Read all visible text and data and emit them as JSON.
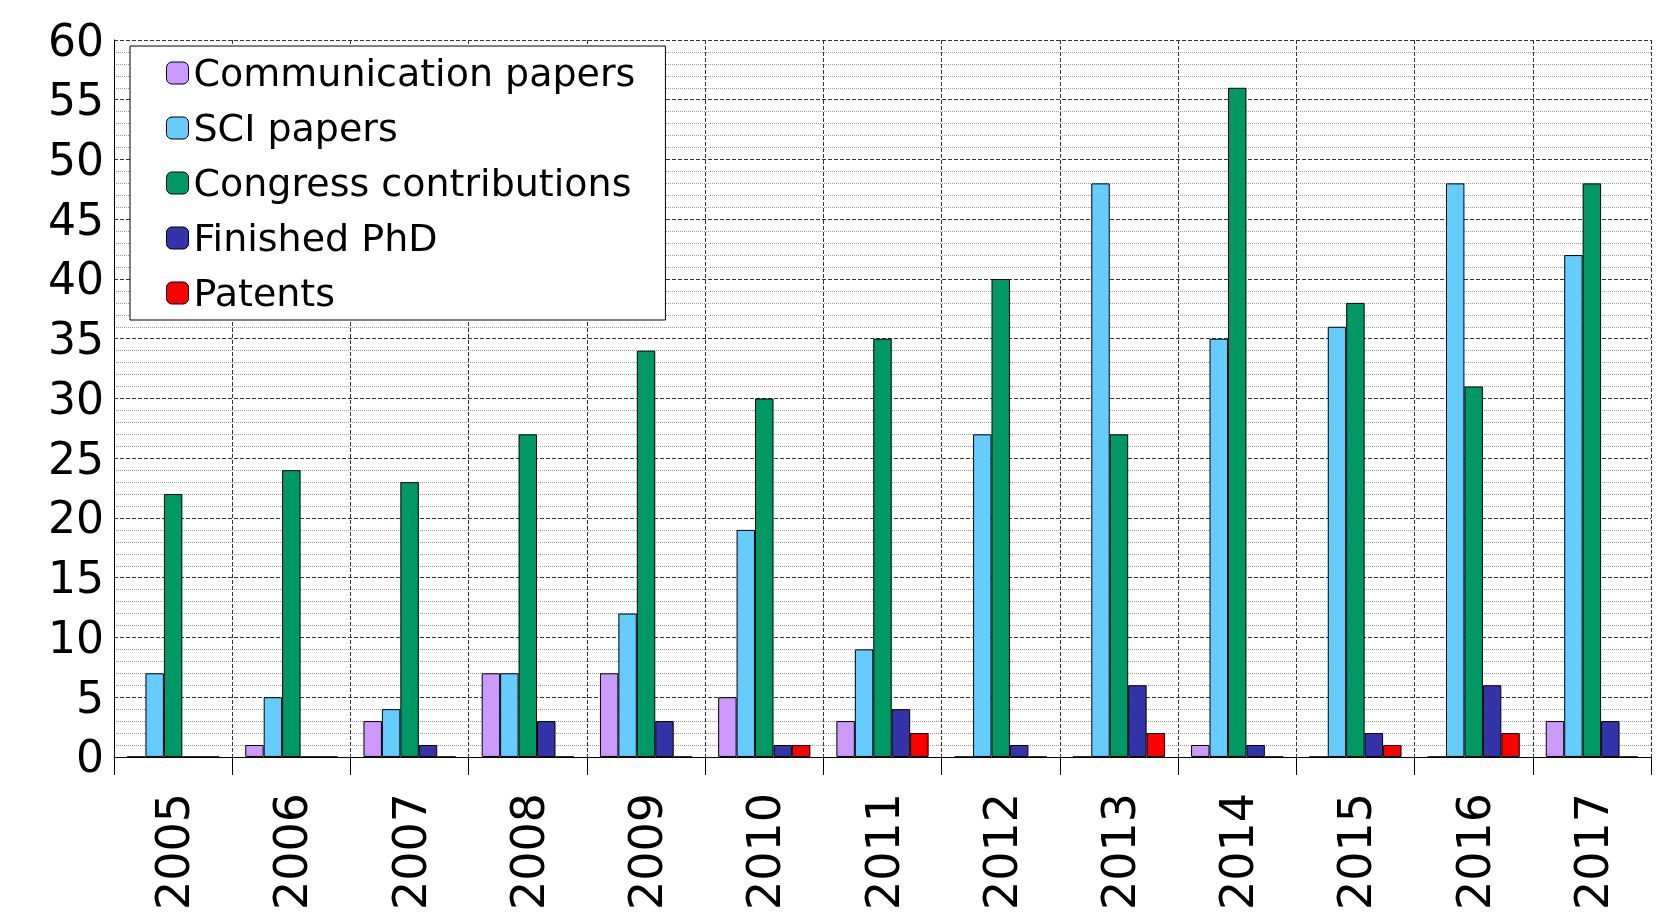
{
  "chart_data": {
    "type": "bar",
    "categories": [
      "2005",
      "2006",
      "2007",
      "2008",
      "2009",
      "2010",
      "2011",
      "2012",
      "2013",
      "2014",
      "2015",
      "2016",
      "2017"
    ],
    "series": [
      {
        "name": "Communication papers",
        "color": "#cc99ff",
        "values": [
          0,
          1,
          3,
          7,
          7,
          5,
          3,
          0,
          0,
          1,
          0,
          0,
          3
        ]
      },
      {
        "name": "SCI papers",
        "color": "#66ccff",
        "values": [
          7,
          5,
          4,
          7,
          12,
          19,
          9,
          27,
          48,
          35,
          36,
          48,
          42
        ]
      },
      {
        "name": "Congress contributions",
        "color": "#009966",
        "values": [
          22,
          24,
          23,
          27,
          34,
          30,
          35,
          40,
          27,
          56,
          38,
          31,
          48
        ]
      },
      {
        "name": "Finished PhD",
        "color": "#3333aa",
        "values": [
          0,
          0,
          1,
          3,
          3,
          1,
          4,
          1,
          6,
          1,
          2,
          6,
          3
        ]
      },
      {
        "name": "Patents",
        "color": "#ff0000",
        "values": [
          0,
          0,
          0,
          0,
          0,
          1,
          2,
          0,
          2,
          0,
          1,
          2,
          0
        ]
      }
    ],
    "ylim": [
      0,
      60
    ],
    "yticks": [
      0,
      5,
      10,
      15,
      20,
      25,
      30,
      35,
      40,
      45,
      50,
      55,
      60
    ],
    "grid": true,
    "legend": "top left"
  }
}
